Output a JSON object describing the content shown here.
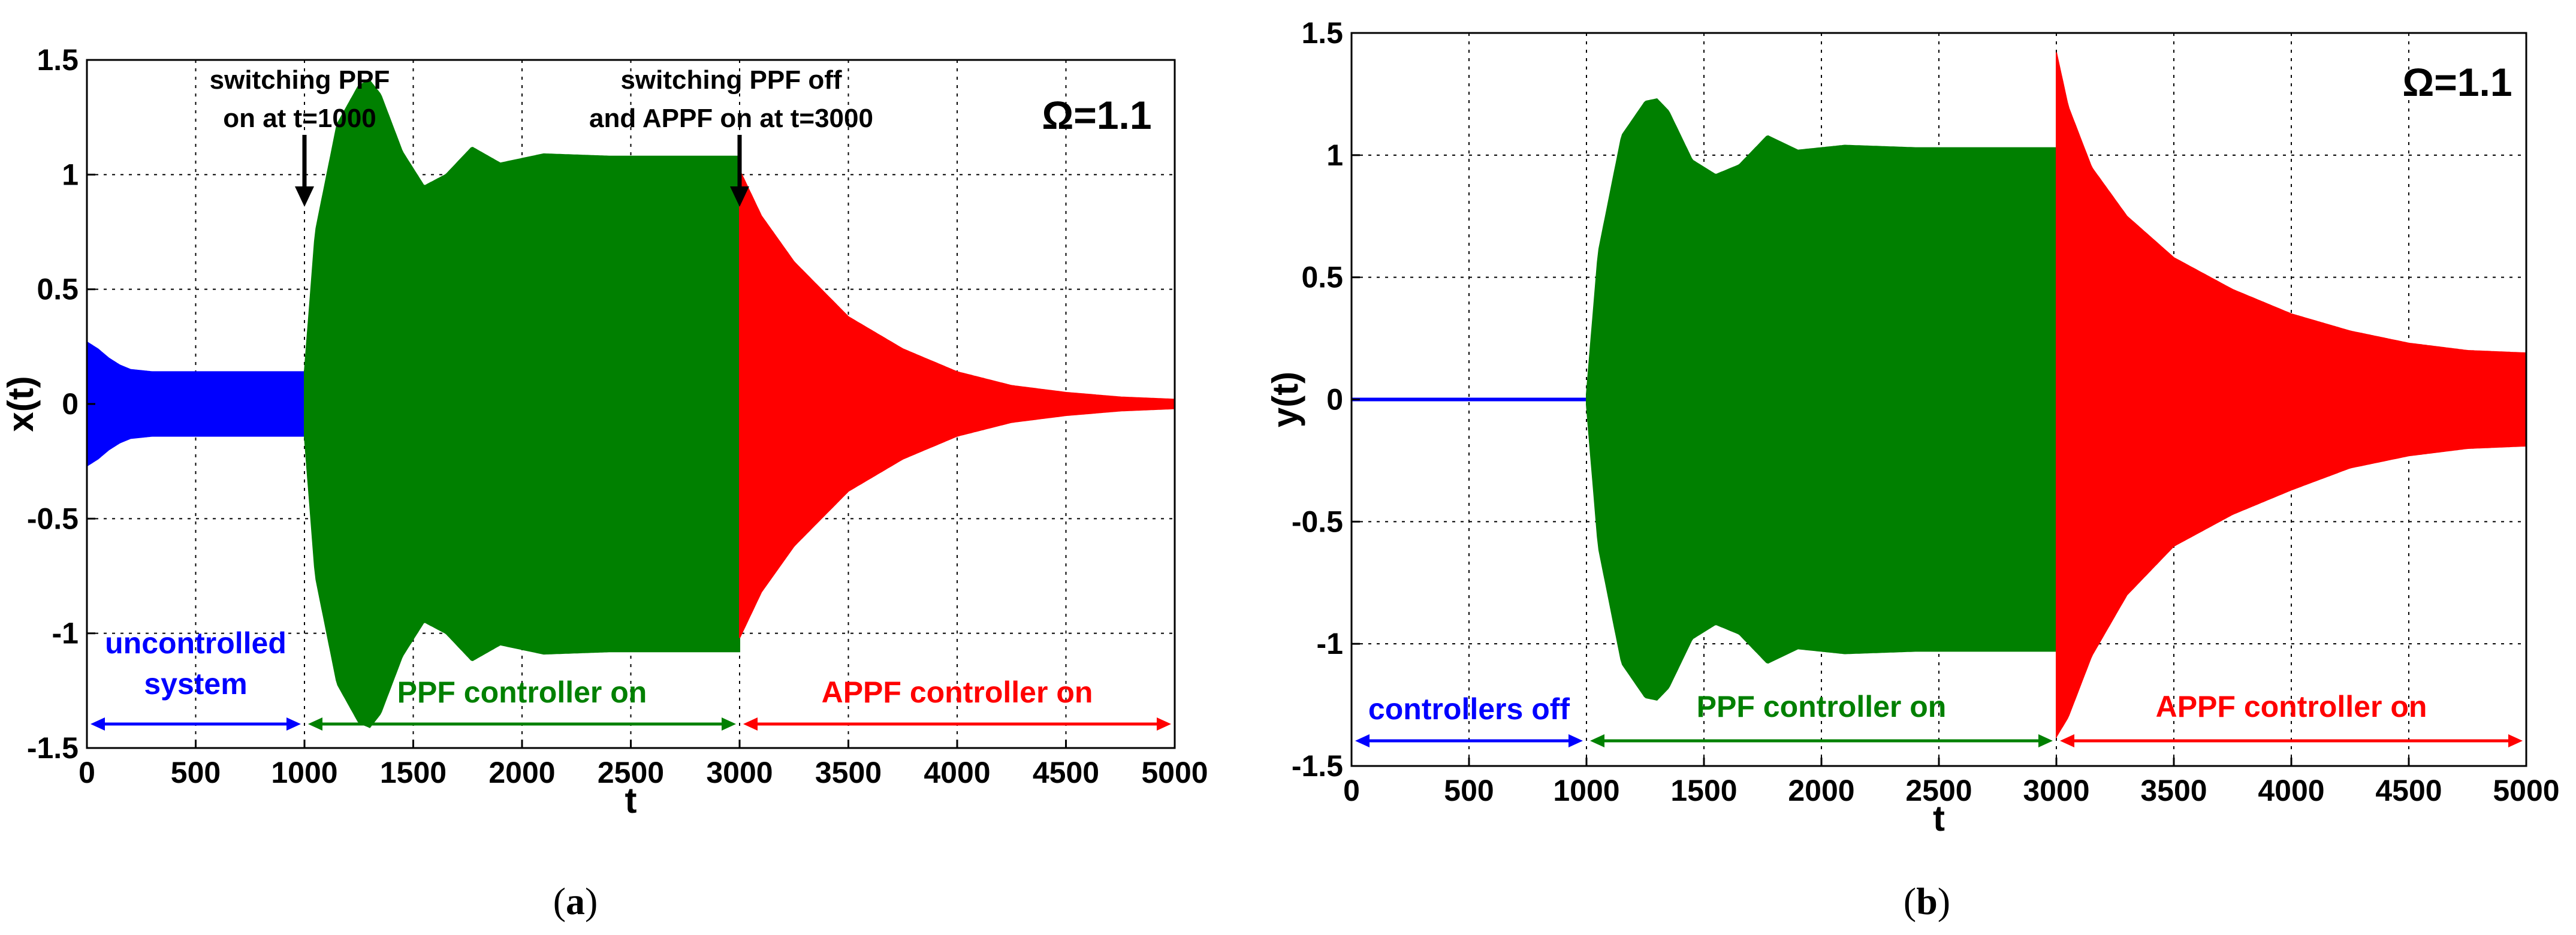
{
  "chart_data": [
    {
      "type": "line",
      "panel": "a",
      "caption_prefix": "(",
      "caption_letter": "a",
      "caption_suffix": ")",
      "xlabel": "t",
      "ylabel": "x(t)",
      "xlim": [
        0,
        5000
      ],
      "ylim": [
        -1.5,
        1.5
      ],
      "xticks": [
        0,
        500,
        1000,
        1500,
        2000,
        2500,
        3000,
        3500,
        4000,
        4500,
        5000
      ],
      "yticks": [
        1.5,
        1,
        0.5,
        0,
        -0.5,
        -1,
        -1.5
      ],
      "ytick_labels": [
        "1.5",
        "1",
        "0.5",
        "0",
        "-0.5",
        "-1",
        "-1.5"
      ],
      "grid": true,
      "parameter_label": "Ω=1.1",
      "series": [
        {
          "name": "uncontrolled system",
          "color": "#0000ff",
          "t": [
            0,
            50,
            100,
            150,
            200,
            300,
            400,
            500,
            700,
            1000
          ],
          "amp_upper": [
            0.27,
            0.24,
            0.2,
            0.17,
            0.15,
            0.14,
            0.14,
            0.14,
            0.14,
            0.14
          ],
          "amp_lower": [
            -0.27,
            -0.24,
            -0.2,
            -0.17,
            -0.15,
            -0.14,
            -0.14,
            -0.14,
            -0.14,
            -0.14
          ]
        },
        {
          "name": "PPF controller on",
          "color": "#008000",
          "t": [
            1000,
            1050,
            1150,
            1250,
            1300,
            1350,
            1450,
            1550,
            1650,
            1770,
            1900,
            2100,
            2400,
            3000
          ],
          "amp_upper": [
            0.14,
            0.75,
            1.22,
            1.39,
            1.41,
            1.35,
            1.1,
            0.95,
            1.0,
            1.12,
            1.05,
            1.09,
            1.08,
            1.08
          ],
          "amp_lower": [
            -0.14,
            -0.75,
            -1.22,
            -1.39,
            -1.41,
            -1.35,
            -1.1,
            -0.95,
            -1.0,
            -1.12,
            -1.05,
            -1.09,
            -1.08,
            -1.08
          ]
        },
        {
          "name": "APPF controller on",
          "color": "#ff0000",
          "t": [
            3000,
            3100,
            3250,
            3500,
            3750,
            4000,
            4250,
            4500,
            4750,
            5000
          ],
          "amp_upper": [
            1.02,
            0.82,
            0.62,
            0.38,
            0.24,
            0.14,
            0.08,
            0.05,
            0.03,
            0.02
          ],
          "amp_lower": [
            -1.02,
            -0.82,
            -0.62,
            -0.38,
            -0.24,
            -0.14,
            -0.08,
            -0.05,
            -0.03,
            -0.02
          ]
        }
      ],
      "annotations": [
        {
          "lines": [
            "switching PPF",
            "on at t=1000"
          ],
          "arrow_t": 1000
        },
        {
          "lines": [
            "switching PPF off",
            "and APPF on at t=3000"
          ],
          "arrow_t": 3000
        }
      ],
      "regions": [
        {
          "lines": [
            "uncontrolled",
            "system"
          ],
          "from": 0,
          "to": 1000,
          "color": "#0000ff"
        },
        {
          "lines": [
            "PPF controller on"
          ],
          "from": 1000,
          "to": 3000,
          "color": "#008000"
        },
        {
          "lines": [
            "APPF controller on"
          ],
          "from": 3000,
          "to": 5000,
          "color": "#ff0000"
        }
      ]
    },
    {
      "type": "line",
      "panel": "b",
      "caption_prefix": "(",
      "caption_letter": "b",
      "caption_suffix": ")",
      "xlabel": "t",
      "ylabel": "y(t)",
      "xlim": [
        0,
        5000
      ],
      "ylim": [
        -1.5,
        1.5
      ],
      "xticks": [
        0,
        500,
        1000,
        1500,
        2000,
        2500,
        3000,
        3500,
        4000,
        4500,
        5000
      ],
      "yticks": [
        1.5,
        1,
        0.5,
        0,
        -0.5,
        -1,
        -1.5
      ],
      "ytick_labels": [
        "1.5",
        "1",
        "0.5",
        "0",
        "-0.5",
        "-1",
        "-1.5"
      ],
      "grid": true,
      "parameter_label": "Ω=1.1",
      "series": [
        {
          "name": "controllers off",
          "color": "#0000ff",
          "t": [
            0,
            1000
          ],
          "amp_upper": [
            0.005,
            0.005
          ],
          "amp_lower": [
            -0.005,
            -0.005
          ]
        },
        {
          "name": "PPF controller on",
          "color": "#008000",
          "t": [
            1000,
            1050,
            1150,
            1250,
            1300,
            1350,
            1450,
            1550,
            1650,
            1770,
            1900,
            2100,
            2400,
            3000
          ],
          "amp_upper": [
            0.02,
            0.6,
            1.08,
            1.22,
            1.23,
            1.18,
            0.98,
            0.92,
            0.96,
            1.08,
            1.02,
            1.04,
            1.03,
            1.03
          ],
          "amp_lower": [
            -0.02,
            -0.6,
            -1.08,
            -1.22,
            -1.23,
            -1.18,
            -0.98,
            -0.92,
            -0.96,
            -1.08,
            -1.02,
            -1.04,
            -1.03,
            -1.03
          ]
        },
        {
          "name": "APPF controller on",
          "color": "#ff0000",
          "t": [
            3000,
            3050,
            3150,
            3300,
            3500,
            3750,
            4000,
            4250,
            4500,
            4750,
            5000
          ],
          "amp_upper": [
            1.42,
            1.2,
            0.95,
            0.75,
            0.58,
            0.45,
            0.35,
            0.28,
            0.23,
            0.2,
            0.19
          ],
          "amp_lower": [
            -1.38,
            -1.3,
            -1.05,
            -0.8,
            -0.6,
            -0.47,
            -0.37,
            -0.28,
            -0.23,
            -0.2,
            -0.19
          ]
        }
      ],
      "annotations": [],
      "regions": [
        {
          "lines": [
            "controllers off"
          ],
          "from": 0,
          "to": 1000,
          "color": "#0000ff"
        },
        {
          "lines": [
            "PPF controller on"
          ],
          "from": 1000,
          "to": 3000,
          "color": "#008000"
        },
        {
          "lines": [
            "APPF controller on"
          ],
          "from": 3000,
          "to": 5000,
          "color": "#ff0000"
        }
      ]
    }
  ]
}
